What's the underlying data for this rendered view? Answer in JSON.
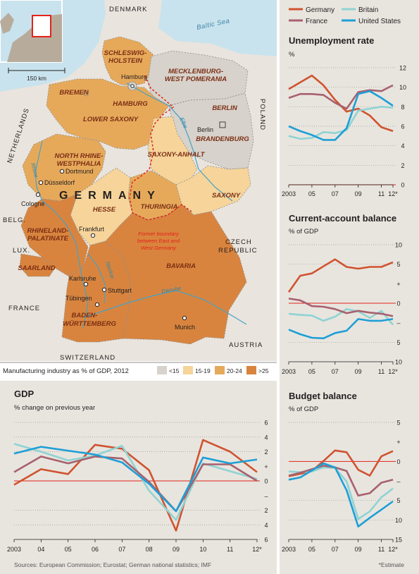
{
  "map": {
    "countries": [
      "DENMARK",
      "Baltic Sea",
      "POLAND",
      "CZECH",
      "REPUBLIC",
      "AUSTRIA",
      "SWITZERLAND",
      "FRANCE",
      "LUX.",
      "BELG.",
      "NETHERLANDS",
      "GERMANY"
    ],
    "scale_label": "150 km",
    "rivers": [
      "Rhine",
      "Elbe",
      "Danube",
      "Neckar"
    ],
    "states": [
      {
        "name": "SCHLESWIG-HOLSTEIN",
        "lines": [
          "SCHLESWIG-",
          "HOLSTEIN"
        ],
        "band": ">25"
      },
      {
        "name": "MECKLENBURG-WEST POMERANIA",
        "lines": [
          "MECKLENBURG-",
          "WEST POMERANIA"
        ],
        "band": "<15"
      },
      {
        "name": "BREMEN",
        "lines": [
          "BREMEN"
        ],
        "band": "20-24"
      },
      {
        "name": "HAMBURG",
        "lines": [
          "HAMBURG"
        ],
        "band": "<15"
      },
      {
        "name": "LOWER SAXONY",
        "lines": [
          "LOWER SAXONY"
        ],
        "band": "20-24"
      },
      {
        "name": "BERLIN",
        "lines": [
          "BERLIN"
        ],
        "band": "<15"
      },
      {
        "name": "BRANDENBURG",
        "lines": [
          "BRANDENBURG"
        ],
        "band": "<15"
      },
      {
        "name": "NORTH RHINE-WESTPHALIA",
        "lines": [
          "NORTH RHINE-",
          "WESTPHALIA"
        ],
        "band": "20-24"
      },
      {
        "name": "SAXONY-ANHALT",
        "lines": [
          "SAXONY-ANHALT"
        ],
        "band": "15-19"
      },
      {
        "name": "SAXONY",
        "lines": [
          "SAXONY"
        ],
        "band": "15-19"
      },
      {
        "name": "HESSE",
        "lines": [
          "HESSE"
        ],
        "band": "15-19"
      },
      {
        "name": "THURINGIA",
        "lines": [
          "THURINGIA"
        ],
        "band": "20-24"
      },
      {
        "name": "RHINELAND-PALATINATE",
        "lines": [
          "RHINELAND-",
          "PALATINATE"
        ],
        "band": ">25"
      },
      {
        "name": "SAARLAND",
        "lines": [
          "SAARLAND"
        ],
        "band": ">25"
      },
      {
        "name": "BAVARIA",
        "lines": [
          "BAVARIA"
        ],
        "band": ">25"
      },
      {
        "name": "BADEN-WÜRTTEMBERG",
        "lines": [
          "BADEN-",
          "WÜRTTEMBERG"
        ],
        "band": ">25"
      }
    ],
    "cities": [
      "Hamburg",
      "Berlin",
      "Dortmund",
      "Düsseldorf",
      "Cologne",
      "Frankfurt",
      "Karlsruhe",
      "Stuttgart",
      "Tübingen",
      "Munich"
    ],
    "boundary_note": [
      "Former boundary",
      "between East and",
      "West Germany"
    ],
    "legend_title": "Manufacturing industry as % of GDP, 2012",
    "legend": [
      {
        "label": "<15",
        "color": "#d7d2cb"
      },
      {
        "label": "15-19",
        "color": "#f6d49a"
      },
      {
        "label": "20-24",
        "color": "#e6a95a"
      },
      {
        "label": ">25",
        "color": "#d9843e"
      }
    ]
  },
  "legend": [
    {
      "name": "Germany",
      "color": "#d0532f"
    },
    {
      "name": "Britain",
      "color": "#8fd3d3"
    },
    {
      "name": "France",
      "color": "#a8616e"
    },
    {
      "name": "United States",
      "color": "#1e9fd6"
    }
  ],
  "footer": {
    "sources": "Sources: European Commission; Eurostat; German national statistics; IMF",
    "estimate": "*Estimate"
  },
  "chart_data": [
    {
      "type": "line",
      "title": "Unemployment rate",
      "ylabel": "%",
      "ylim": [
        0,
        12
      ],
      "yticks": [
        "12",
        "10",
        "8",
        "6",
        "4",
        "2",
        "0"
      ],
      "xticks": [
        "2003",
        "05",
        "07",
        "09",
        "11",
        "12*"
      ],
      "x": [
        2003,
        2004,
        2005,
        2006,
        2007,
        2008,
        2009,
        2010,
        2011,
        2012
      ],
      "series": [
        {
          "name": "Germany",
          "values": [
            9.8,
            10.5,
            11.2,
            10.2,
            8.7,
            7.5,
            7.8,
            7.1,
            5.9,
            5.5
          ]
        },
        {
          "name": "Britain",
          "values": [
            5.0,
            4.7,
            4.8,
            5.4,
            5.3,
            5.6,
            7.6,
            7.8,
            8.0,
            7.9
          ]
        },
        {
          "name": "France",
          "values": [
            8.9,
            9.3,
            9.3,
            9.2,
            8.4,
            7.8,
            9.5,
            9.7,
            9.6,
            10.2
          ]
        },
        {
          "name": "United States",
          "values": [
            6.0,
            5.5,
            5.1,
            4.6,
            4.6,
            5.8,
            9.3,
            9.6,
            8.9,
            8.1
          ]
        }
      ]
    },
    {
      "type": "line",
      "title": "Current-account balance",
      "ylabel": "% of GDP",
      "ylim": [
        -10,
        10
      ],
      "yticks": [
        "10",
        "5",
        "+",
        "0",
        "–",
        "5",
        "10"
      ],
      "xticks": [
        "2003",
        "05",
        "07",
        "09",
        "11",
        "12*"
      ],
      "x": [
        2003,
        2004,
        2005,
        2006,
        2007,
        2008,
        2009,
        2010,
        2011,
        2012
      ],
      "series": [
        {
          "name": "Germany",
          "values": [
            1.9,
            4.7,
            5.1,
            6.3,
            7.5,
            6.2,
            5.9,
            6.2,
            6.2,
            7.0
          ]
        },
        {
          "name": "Britain",
          "values": [
            -1.8,
            -2.0,
            -2.1,
            -3.0,
            -2.3,
            -1.0,
            -1.4,
            -2.5,
            -1.3,
            -3.7
          ]
        },
        {
          "name": "France",
          "values": [
            0.8,
            0.5,
            -0.5,
            -0.6,
            -1.0,
            -1.7,
            -1.3,
            -1.6,
            -1.8,
            -2.2
          ]
        },
        {
          "name": "United States",
          "values": [
            -4.5,
            -5.3,
            -5.9,
            -6.0,
            -5.1,
            -4.7,
            -2.7,
            -3.0,
            -3.0,
            -2.7
          ]
        }
      ]
    },
    {
      "type": "line",
      "title": "Budget balance",
      "ylabel": "% of GDP",
      "ylim": [
        -15,
        5
      ],
      "yticks": [
        "5",
        "+",
        "0",
        "–",
        "5",
        "10",
        "15"
      ],
      "xticks": [
        "2003",
        "05",
        "07",
        "09",
        "11",
        "12*"
      ],
      "x": [
        2003,
        2004,
        2005,
        2006,
        2007,
        2008,
        2009,
        2010,
        2011,
        2012
      ],
      "series": [
        {
          "name": "Germany",
          "values": [
            -4.2,
            -3.8,
            -3.3,
            -1.6,
            0.2,
            -0.1,
            -3.1,
            -4.1,
            -0.8,
            0.1
          ]
        },
        {
          "name": "Britain",
          "values": [
            -3.4,
            -3.5,
            -3.4,
            -2.7,
            -2.8,
            -5.1,
            -11.5,
            -10.2,
            -7.8,
            -6.3
          ]
        },
        {
          "name": "France",
          "values": [
            -4.1,
            -3.6,
            -3.0,
            -2.4,
            -2.7,
            -3.3,
            -7.5,
            -7.1,
            -5.3,
            -4.8
          ]
        },
        {
          "name": "United States",
          "values": [
            -4.8,
            -4.4,
            -3.2,
            -2.0,
            -2.7,
            -6.6,
            -12.8,
            -11.3,
            -9.9,
            -8.5
          ]
        }
      ]
    },
    {
      "type": "line",
      "title": "GDP",
      "ylabel": "% change on previous year",
      "ylim": [
        -6,
        6
      ],
      "yticks": [
        "6",
        "4",
        "2",
        "+",
        "0",
        "–",
        "2",
        "4",
        "6"
      ],
      "xticks": [
        "2003",
        "04",
        "05",
        "06",
        "07",
        "08",
        "09",
        "10",
        "11",
        "12*"
      ],
      "x": [
        2003,
        2004,
        2005,
        2006,
        2007,
        2008,
        2009,
        2010,
        2011,
        2012
      ],
      "series": [
        {
          "name": "Germany",
          "values": [
            -0.4,
            1.2,
            0.7,
            3.7,
            3.3,
            1.1,
            -5.1,
            4.2,
            3.0,
            0.9
          ]
        },
        {
          "name": "Britain",
          "values": [
            3.8,
            3.0,
            2.1,
            2.6,
            3.6,
            -1.0,
            -4.0,
            1.8,
            1.0,
            0.2
          ]
        },
        {
          "name": "France",
          "values": [
            0.9,
            2.5,
            1.8,
            2.5,
            2.3,
            -0.1,
            -3.1,
            1.7,
            1.7,
            0.0
          ]
        },
        {
          "name": "United States",
          "values": [
            2.8,
            3.5,
            3.1,
            2.7,
            1.9,
            -0.3,
            -3.1,
            2.4,
            1.8,
            2.2
          ]
        }
      ]
    }
  ]
}
